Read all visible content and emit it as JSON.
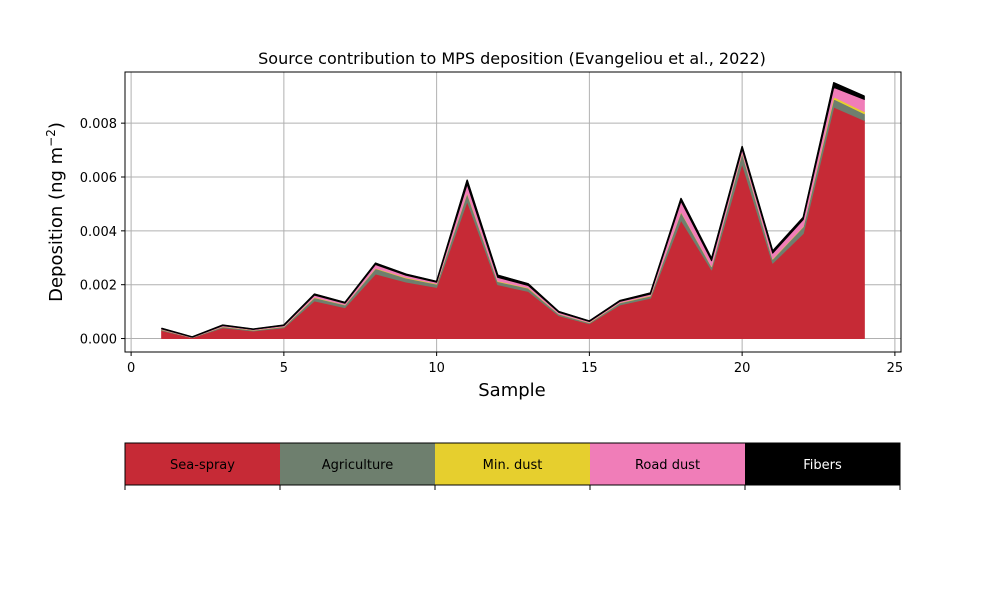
{
  "chart_data": {
    "type": "area",
    "title": "Source contribution to MPS deposition (Evangeliou et al., 2022)",
    "xlabel": "Sample",
    "ylabel": "Deposition (ng m",
    "ylabel_sup": "−2",
    "ylabel_close": ")",
    "xlim": [
      -0.2,
      25.2
    ],
    "ylim": [
      -0.0005,
      0.0099
    ],
    "xticks": [
      "0",
      "5",
      "10",
      "15",
      "20",
      "25"
    ],
    "yticks": [
      "0.000",
      "0.002",
      "0.004",
      "0.006",
      "0.008"
    ],
    "grid": true,
    "stacked": true,
    "x": [
      1,
      2,
      3,
      4,
      5,
      6,
      7,
      8,
      9,
      10,
      11,
      12,
      13,
      14,
      15,
      16,
      17,
      18,
      19,
      20,
      21,
      22,
      23,
      24
    ],
    "series": [
      {
        "name": "Sea-spray",
        "color": "#c62a36",
        "values": [
          0.0003,
          3e-05,
          0.0004,
          0.00028,
          0.0004,
          0.0014,
          0.00115,
          0.0024,
          0.0021,
          0.0019,
          0.0051,
          0.002,
          0.00175,
          0.00085,
          0.00055,
          0.00125,
          0.0015,
          0.0044,
          0.00255,
          0.0065,
          0.0028,
          0.0039,
          0.0086,
          0.0081
        ]
      },
      {
        "name": "Agriculture",
        "color": "#6e7f6e",
        "values": [
          3e-05,
          1e-05,
          4e-05,
          3e-05,
          4e-05,
          0.00012,
          0.0001,
          0.0002,
          0.00015,
          0.00012,
          0.0003,
          0.00012,
          0.00012,
          6e-05,
          4e-05,
          8e-05,
          8e-05,
          0.0003,
          0.00012,
          0.0004,
          0.00015,
          0.00025,
          0.0003,
          0.00025
        ]
      },
      {
        "name": "Min. dust",
        "color": "#e6cf2e",
        "values": [
          1e-05,
          0.0,
          1e-05,
          1e-05,
          1e-05,
          2e-05,
          1e-05,
          2e-05,
          2e-05,
          2e-05,
          3e-05,
          2e-05,
          2e-05,
          1e-05,
          1e-05,
          1e-05,
          2e-05,
          2e-05,
          2e-05,
          3e-05,
          2e-05,
          2e-05,
          8e-05,
          8e-05
        ]
      },
      {
        "name": "Road dust",
        "color": "#f07db8",
        "values": [
          2e-05,
          1e-05,
          3e-05,
          2e-05,
          3e-05,
          7e-05,
          5e-05,
          0.00013,
          8e-05,
          5e-05,
          0.0003,
          0.00013,
          8e-05,
          5e-05,
          3e-05,
          4e-05,
          5e-05,
          0.00038,
          0.0002,
          0.0001,
          0.0002,
          0.00025,
          0.00035,
          0.00045
        ]
      },
      {
        "name": "Fibers",
        "color": "#000000",
        "values": [
          2e-05,
          1e-05,
          2e-05,
          1e-05,
          2e-05,
          4e-05,
          3e-05,
          5e-05,
          4e-05,
          3e-05,
          0.00015,
          8e-05,
          6e-05,
          3e-05,
          2e-05,
          3e-05,
          4e-05,
          0.0001,
          8e-05,
          0.0001,
          8e-05,
          8e-05,
          0.00017,
          0.00012
        ]
      }
    ]
  }
}
